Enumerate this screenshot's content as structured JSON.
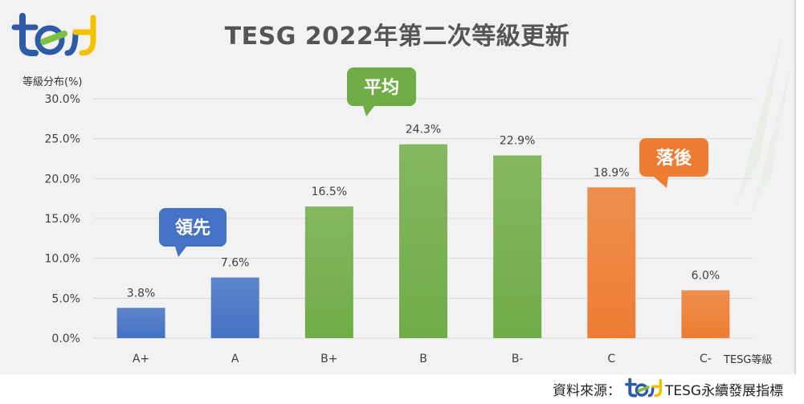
{
  "title": "TESG 2022年第二次等級更新",
  "source_label": "資料來源：",
  "source_brand": "TESG永續發展指標",
  "logo_text": "tesg",
  "colors": {
    "blue": "#4472c4",
    "green": "#70ad47",
    "orange": "#ed7d31",
    "grid": "#d9d9d9",
    "text": "#404040"
  },
  "callouts": [
    {
      "label": "領先",
      "color": "#4472c4"
    },
    {
      "label": "平均",
      "color": "#70ad47"
    },
    {
      "label": "落後",
      "color": "#ed7d31"
    }
  ],
  "chart_data": {
    "type": "bar",
    "title": "TESG 2022年第二次等級更新",
    "ylabel": "等級分布(%)",
    "xlabel": "TESG等級",
    "ylim": [
      0,
      30
    ],
    "yticks": [
      "0.0%",
      "5.0%",
      "10.0%",
      "15.0%",
      "20.0%",
      "25.0%",
      "30.0%"
    ],
    "grid": true,
    "categories": [
      "A+",
      "A",
      "B+",
      "B",
      "B-",
      "C",
      "C-"
    ],
    "values": [
      3.8,
      7.6,
      16.5,
      24.3,
      22.9,
      18.9,
      6.0
    ],
    "value_labels": [
      "3.8%",
      "7.6%",
      "16.5%",
      "24.3%",
      "22.9%",
      "18.9%",
      "6.0%"
    ],
    "bar_groups": [
      "blue",
      "blue",
      "green",
      "green",
      "green",
      "orange",
      "orange"
    ]
  }
}
